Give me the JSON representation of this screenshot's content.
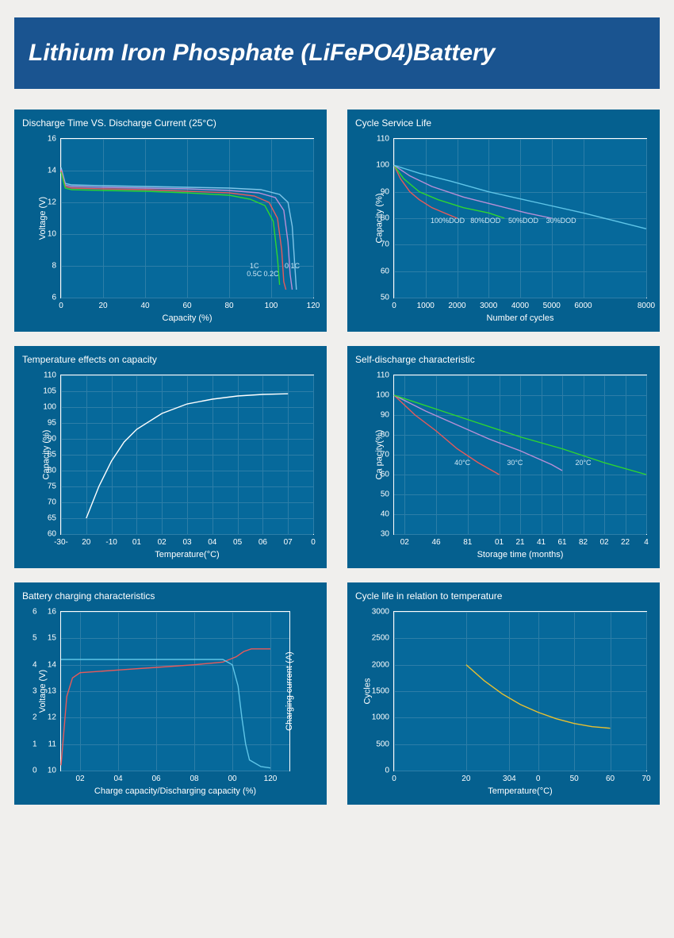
{
  "header": {
    "title": "Lithium Iron Phosphate (LiFePO4)Battery"
  },
  "colors": {
    "panel_bg": "#05608f",
    "chart_bg": "#06699b",
    "grid": "#2d7ea8",
    "axis": "#ffffff",
    "text": "#ffffff",
    "header_bg": "#1a5490",
    "page_bg": "#f0efed"
  },
  "charts": [
    {
      "id": "discharge",
      "title": "Discharge Time VS. Discharge Current (25°C)",
      "type": "line",
      "xlabel": "Capacity (%)",
      "ylabel": "Voltage (V)",
      "xlim": [
        0,
        120
      ],
      "xticks": [
        0,
        20,
        40,
        60,
        80,
        100,
        120
      ],
      "ylim": [
        6,
        16
      ],
      "yticks": [
        6,
        8,
        10,
        12,
        14,
        16
      ],
      "series": [
        {
          "name": "0.1C",
          "color": "#7fc5e8",
          "label_x": 110,
          "label_y": 8,
          "pts": [
            [
              0,
              14.2
            ],
            [
              2,
              13.2
            ],
            [
              5,
              13.1
            ],
            [
              20,
              13.05
            ],
            [
              40,
              13.0
            ],
            [
              60,
              12.95
            ],
            [
              80,
              12.9
            ],
            [
              95,
              12.8
            ],
            [
              104,
              12.5
            ],
            [
              108,
              12.0
            ],
            [
              110,
              10.5
            ],
            [
              111,
              8.5
            ],
            [
              112,
              6.5
            ]
          ]
        },
        {
          "name": "0.2C",
          "color": "#b88fd6",
          "label_x": 100,
          "label_y": 7.5,
          "pts": [
            [
              0,
              14.1
            ],
            [
              2,
              13.1
            ],
            [
              5,
              13.0
            ],
            [
              20,
              12.95
            ],
            [
              40,
              12.9
            ],
            [
              60,
              12.85
            ],
            [
              80,
              12.75
            ],
            [
              94,
              12.6
            ],
            [
              102,
              12.3
            ],
            [
              106,
              11.5
            ],
            [
              108,
              9.5
            ],
            [
              109,
              7.5
            ],
            [
              110,
              6.5
            ]
          ]
        },
        {
          "name": "0.5C",
          "color": "#e85a5a",
          "label_x": 92,
          "label_y": 7.5,
          "pts": [
            [
              0,
              14.0
            ],
            [
              2,
              13.0
            ],
            [
              5,
              12.9
            ],
            [
              20,
              12.85
            ],
            [
              40,
              12.8
            ],
            [
              60,
              12.7
            ],
            [
              80,
              12.6
            ],
            [
              92,
              12.4
            ],
            [
              99,
              12.0
            ],
            [
              103,
              11.0
            ],
            [
              105,
              9.0
            ],
            [
              106,
              7.0
            ],
            [
              107,
              6.5
            ]
          ]
        },
        {
          "name": "1C",
          "color": "#2fd62f",
          "label_x": 92,
          "label_y": 8,
          "pts": [
            [
              0,
              13.9
            ],
            [
              2,
              12.9
            ],
            [
              5,
              12.8
            ],
            [
              20,
              12.75
            ],
            [
              40,
              12.7
            ],
            [
              60,
              12.6
            ],
            [
              80,
              12.45
            ],
            [
              90,
              12.2
            ],
            [
              97,
              11.8
            ],
            [
              101,
              10.8
            ],
            [
              103,
              8.5
            ],
            [
              104,
              6.8
            ]
          ]
        }
      ]
    },
    {
      "id": "cycle",
      "title": "Cycle Service Life",
      "type": "line",
      "xlabel": "Number of cycles",
      "ylabel": "Capacity (%)",
      "xlim": [
        0,
        8000
      ],
      "xticks": [
        0,
        1000,
        2000,
        3000,
        4000,
        5000,
        6000,
        8000
      ],
      "ylim": [
        50,
        110
      ],
      "yticks": [
        50,
        60,
        70,
        80,
        90,
        100,
        110
      ],
      "series": [
        {
          "name": "100%DOD",
          "color": "#e85a5a",
          "label_x": 1700,
          "label_y": 79,
          "pts": [
            [
              0,
              100
            ],
            [
              200,
              95
            ],
            [
              500,
              90
            ],
            [
              800,
              87
            ],
            [
              1200,
              84
            ],
            [
              1600,
              82
            ],
            [
              2000,
              80
            ]
          ]
        },
        {
          "name": "80%DOD",
          "color": "#2fd62f",
          "label_x": 2900,
          "label_y": 79,
          "pts": [
            [
              0,
              100
            ],
            [
              300,
              95
            ],
            [
              800,
              90
            ],
            [
              1400,
              87
            ],
            [
              2200,
              84
            ],
            [
              3000,
              82
            ],
            [
              3500,
              80
            ]
          ]
        },
        {
          "name": "50%DOD",
          "color": "#b88fd6",
          "label_x": 4100,
          "label_y": 79,
          "pts": [
            [
              0,
              100
            ],
            [
              500,
              96
            ],
            [
              1200,
              92
            ],
            [
              2200,
              88
            ],
            [
              3200,
              85
            ],
            [
              4200,
              82
            ],
            [
              5000,
              80
            ]
          ]
        },
        {
          "name": "30%DOD",
          "color": "#5fc5e8",
          "label_x": 5300,
          "label_y": 79,
          "pts": [
            [
              0,
              100
            ],
            [
              800,
              97
            ],
            [
              1800,
              94
            ],
            [
              3000,
              90
            ],
            [
              4500,
              86
            ],
            [
              6000,
              82
            ],
            [
              7000,
              79
            ],
            [
              8000,
              76
            ]
          ]
        }
      ]
    },
    {
      "id": "temp_cap",
      "title": "Temperature effects on capacity",
      "type": "line",
      "xlabel": "Temperature(°C)",
      "ylabel": "Capacity (%)",
      "xlim": [
        -30,
        70
      ],
      "xticks_raw": [
        "-30-",
        "20",
        "-10",
        "01",
        "02",
        "03",
        "04",
        "05",
        "06",
        "07",
        "0"
      ],
      "xtick_pos": [
        -30,
        -20,
        -10,
        0,
        10,
        20,
        30,
        40,
        50,
        60,
        70
      ],
      "ylim": [
        60,
        110
      ],
      "yticks": [
        60,
        65,
        70,
        75,
        80,
        85,
        90,
        95,
        100,
        105,
        110
      ],
      "series": [
        {
          "name": "",
          "color": "#ffffff",
          "pts": [
            [
              -20,
              65
            ],
            [
              -15,
              75
            ],
            [
              -10,
              83
            ],
            [
              -5,
              89
            ],
            [
              0,
              93
            ],
            [
              10,
              98
            ],
            [
              20,
              101
            ],
            [
              30,
              102.5
            ],
            [
              40,
              103.5
            ],
            [
              50,
              104
            ],
            [
              60,
              104.2
            ]
          ]
        }
      ]
    },
    {
      "id": "selfdis",
      "title": "Self-discharge characteristic",
      "type": "line",
      "xlabel": "Storage time (months)",
      "ylabel": "Ca pacity(%)",
      "xlim": [
        0,
        24
      ],
      "xticks_raw": [
        "02",
        "46",
        "81",
        "01",
        "21",
        "41",
        "61",
        "82",
        "02",
        "22",
        "4"
      ],
      "xtick_pos": [
        1,
        4,
        7,
        10,
        12,
        14,
        16,
        18,
        20,
        22,
        24
      ],
      "ylim": [
        30,
        110
      ],
      "yticks": [
        30,
        40,
        50,
        60,
        70,
        80,
        90,
        100,
        110
      ],
      "series": [
        {
          "name": "40°C",
          "color": "#e85a5a",
          "label_x": 6.5,
          "label_y": 66,
          "pts": [
            [
              0,
              100
            ],
            [
              2,
              90
            ],
            [
              4,
              82
            ],
            [
              6,
              73
            ],
            [
              8,
              66
            ],
            [
              10,
              60
            ]
          ]
        },
        {
          "name": "30°C",
          "color": "#b88fd6",
          "label_x": 11.5,
          "label_y": 66,
          "pts": [
            [
              0,
              100
            ],
            [
              3,
              92
            ],
            [
              6,
              85
            ],
            [
              9,
              78
            ],
            [
              12,
              72
            ],
            [
              15,
              65
            ],
            [
              16,
              62
            ]
          ]
        },
        {
          "name": "20°C",
          "color": "#2fd62f",
          "label_x": 18,
          "label_y": 66,
          "pts": [
            [
              0,
              100
            ],
            [
              4,
              93
            ],
            [
              8,
              86
            ],
            [
              12,
              79
            ],
            [
              16,
              73
            ],
            [
              20,
              66
            ],
            [
              24,
              60
            ]
          ]
        }
      ]
    },
    {
      "id": "charging",
      "title": "Battery charging characteristics",
      "type": "line",
      "xlabel": "Charge capacity/Discharging capacity (%)",
      "ylabel": "Voltage (V)",
      "ylabel2": "Charging current  (A)",
      "xlim": [
        0,
        120
      ],
      "xticks_raw": [
        "02",
        "04",
        "06",
        "08",
        "00",
        "120"
      ],
      "xtick_pos": [
        10,
        30,
        50,
        70,
        90,
        110
      ],
      "ylim": [
        10,
        16
      ],
      "yticks": [
        10,
        11,
        12,
        13,
        14,
        15,
        16
      ],
      "y2lim": [
        0,
        6
      ],
      "y2ticks": [
        0,
        1,
        2,
        3,
        4,
        5,
        6
      ],
      "series": [
        {
          "name": "voltage",
          "color": "#e85a5a",
          "pts": [
            [
              0,
              10.2
            ],
            [
              3,
              12.8
            ],
            [
              6,
              13.5
            ],
            [
              10,
              13.7
            ],
            [
              30,
              13.8
            ],
            [
              50,
              13.9
            ],
            [
              70,
              14.0
            ],
            [
              85,
              14.1
            ],
            [
              92,
              14.3
            ],
            [
              96,
              14.5
            ],
            [
              100,
              14.6
            ],
            [
              110,
              14.6
            ]
          ]
        },
        {
          "name": "current",
          "color": "#5fc5e8",
          "axis": "y2",
          "pts": [
            [
              0,
              4.2
            ],
            [
              30,
              4.2
            ],
            [
              60,
              4.2
            ],
            [
              85,
              4.2
            ],
            [
              90,
              4.0
            ],
            [
              93,
              3.2
            ],
            [
              95,
              2.0
            ],
            [
              97,
              1.0
            ],
            [
              99,
              0.4
            ],
            [
              105,
              0.15
            ],
            [
              110,
              0.1
            ]
          ]
        }
      ]
    },
    {
      "id": "cycletemp",
      "title": "Cycle life in relation to temperature",
      "type": "line",
      "xlabel": "Temperature(°C)",
      "ylabel": "Cycles",
      "xlim": [
        0,
        70
      ],
      "xticks_raw": [
        "0",
        "20",
        "304",
        "0",
        "50",
        "60",
        "70"
      ],
      "xtick_pos": [
        0,
        20,
        32,
        40,
        50,
        60,
        70
      ],
      "ylim": [
        0,
        3000
      ],
      "yticks": [
        0,
        500,
        1000,
        1500,
        2000,
        2500,
        3000
      ],
      "series": [
        {
          "name": "",
          "color": "#e8c030",
          "stroke_width": 2,
          "pts": [
            [
              20,
              2000
            ],
            [
              25,
              1700
            ],
            [
              30,
              1450
            ],
            [
              35,
              1250
            ],
            [
              40,
              1100
            ],
            [
              45,
              980
            ],
            [
              50,
              890
            ],
            [
              55,
              830
            ],
            [
              60,
              800
            ]
          ]
        }
      ]
    }
  ]
}
